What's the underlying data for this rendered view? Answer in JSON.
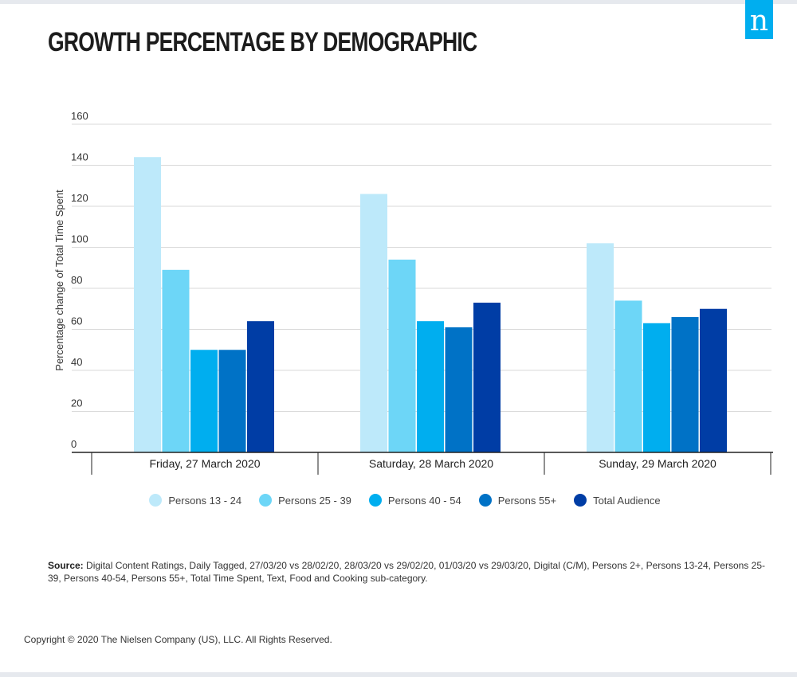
{
  "title": "GROWTH PERCENTAGE BY DEMOGRAPHIC",
  "logo_text": "n",
  "source": {
    "label": "Source:",
    "text": "Digital Content Ratings, Daily Tagged, 27/03/20 vs 28/02/20, 28/03/20 vs 29/02/20,  01/03/20 vs 29/03/20, Digital (C/M), Persons 2+, Persons 13-24, Persons 25-39, Persons 40-54, Persons 55+, Total Time Spent, Text, Food and Cooking sub-category."
  },
  "copyright": "Copyright © 2020 The Nielsen Company (US), LLC. All Rights Reserved.",
  "chart_data": {
    "type": "bar",
    "title": "GROWTH PERCENTAGE BY DEMOGRAPHIC",
    "ylabel": "Percentage change of Total Time Spent",
    "xlabel": "",
    "ylim": [
      0,
      160
    ],
    "yticks": [
      "0",
      "20",
      "40",
      "60",
      "80",
      "100",
      "120",
      "140",
      "160"
    ],
    "grid": true,
    "legend_position": "bottom",
    "categories": [
      "Friday, 27 March 2020",
      "Saturday, 28 March 2020",
      "Sunday, 29 March 2020"
    ],
    "series": [
      {
        "name": "Persons 13 - 24",
        "color": "#bde9fa",
        "values": [
          144,
          126,
          102
        ]
      },
      {
        "name": "Persons 25 - 39",
        "color": "#6dd6f7",
        "values": [
          89,
          94,
          74
        ]
      },
      {
        "name": "Persons 40 - 54",
        "color": "#00aeef",
        "values": [
          50,
          64,
          63
        ]
      },
      {
        "name": "Persons 55+",
        "color": "#0072c6",
        "values": [
          50,
          61,
          66
        ]
      },
      {
        "name": "Total Audience",
        "color": "#003da5",
        "values": [
          64,
          73,
          70
        ]
      }
    ]
  }
}
